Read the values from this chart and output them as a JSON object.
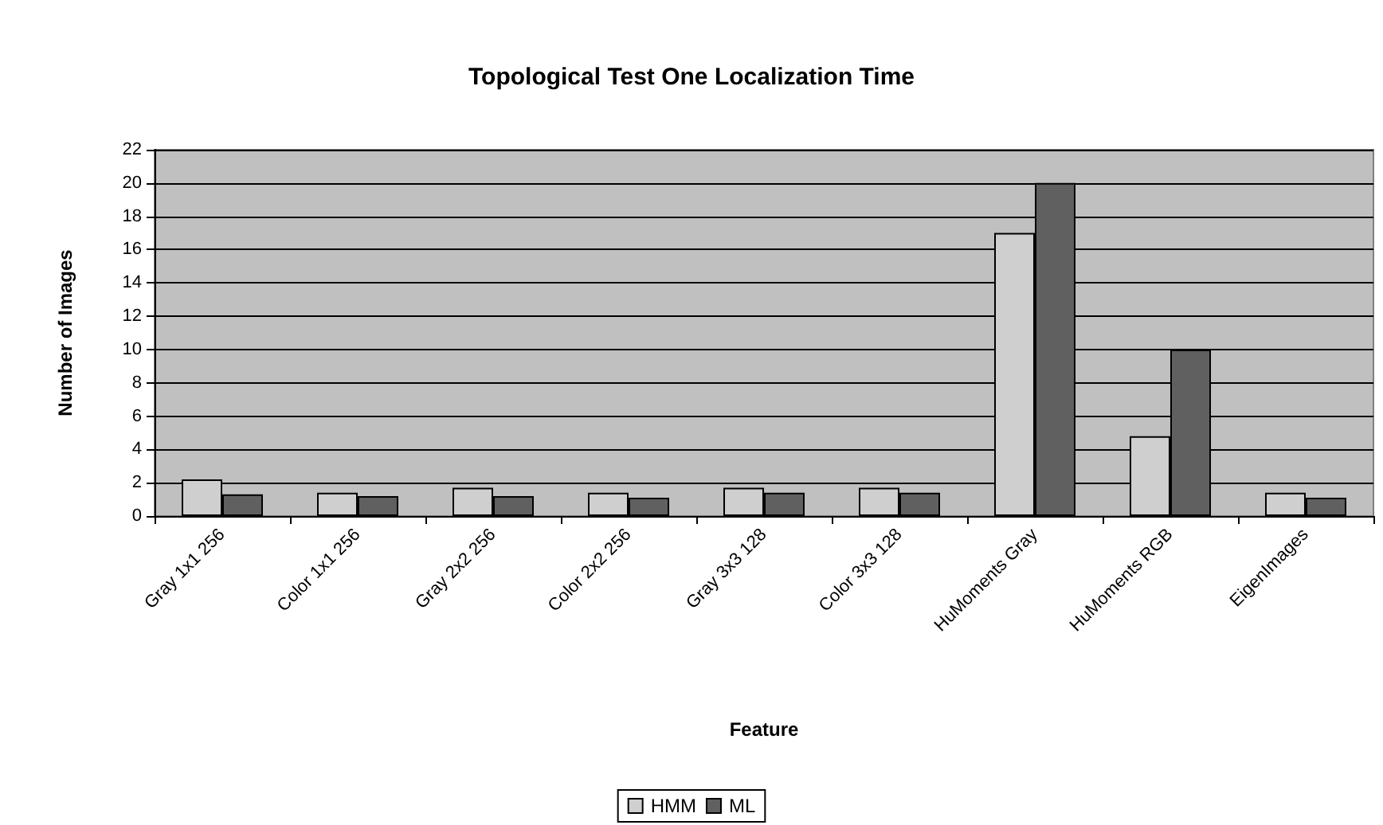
{
  "chart_data": {
    "type": "bar",
    "title": "Topological Test One Localization Time",
    "xlabel": "Feature",
    "ylabel": "Number of Images",
    "categories": [
      "Gray 1x1 256",
      "Color 1x1 256",
      "Gray 2x2 256",
      "Color 2x2 256",
      "Gray 3x3 128",
      "Color 3x3 128",
      "HuMoments Gray",
      "HuMoments RGB",
      "EigenImages"
    ],
    "series": [
      {
        "name": "HMM",
        "color": "#cfcfcf",
        "values": [
          2.2,
          1.4,
          1.7,
          1.4,
          1.7,
          1.7,
          17,
          4.8,
          1.4
        ]
      },
      {
        "name": "ML",
        "color": "#606060",
        "values": [
          1.3,
          1.2,
          1.2,
          1.1,
          1.4,
          1.4,
          20,
          10,
          1.1
        ]
      }
    ],
    "ylim": [
      0,
      22
    ],
    "yticks": [
      0,
      2,
      4,
      6,
      8,
      10,
      12,
      14,
      16,
      18,
      20,
      22
    ],
    "grid": "y",
    "legend": "bottom"
  }
}
